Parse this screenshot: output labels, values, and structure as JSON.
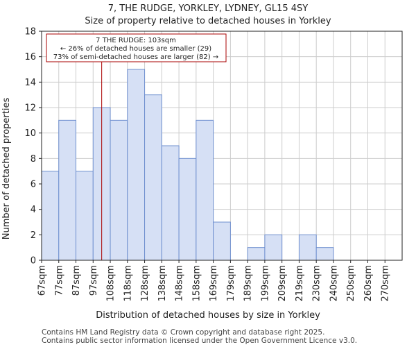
{
  "chart_data": {
    "type": "bar",
    "title": "7, THE RUDGE, YORKLEY, LYDNEY, GL15 4SY",
    "subtitle": "Size of property relative to detached houses in Yorkley",
    "xlabel": "Distribution of detached houses by size in Yorkley",
    "ylabel": "Number of detached properties",
    "categories": [
      "67sqm",
      "77sqm",
      "87sqm",
      "97sqm",
      "108sqm",
      "118sqm",
      "128sqm",
      "138sqm",
      "148sqm",
      "158sqm",
      "169sqm",
      "179sqm",
      "189sqm",
      "199sqm",
      "209sqm",
      "219sqm",
      "230sqm",
      "240sqm",
      "250sqm",
      "260sqm",
      "270sqm"
    ],
    "values": [
      7,
      11,
      7,
      12,
      11,
      15,
      13,
      9,
      8,
      11,
      3,
      0,
      1,
      2,
      0,
      2,
      1,
      0,
      0,
      0,
      0
    ],
    "ylim": [
      0,
      18
    ],
    "yticks": [
      0,
      2,
      4,
      6,
      8,
      10,
      12,
      14,
      16,
      18
    ],
    "grid": true,
    "bar_color": "#d6e0f5",
    "bar_edge_color": "#6f8fcf",
    "marker": {
      "value_sqm": 103,
      "position_index": 3.5,
      "color": "#aa0000"
    },
    "annotation": {
      "line1": "7 THE RUDGE: 103sqm",
      "line2": "← 26% of detached houses are smaller (29)",
      "line3": "73% of semi-detached houses are larger (82) →"
    }
  },
  "footer": {
    "line1": "Contains HM Land Registry data © Crown copyright and database right 2025.",
    "line2": "Contains public sector information licensed under the Open Government Licence v3.0."
  }
}
